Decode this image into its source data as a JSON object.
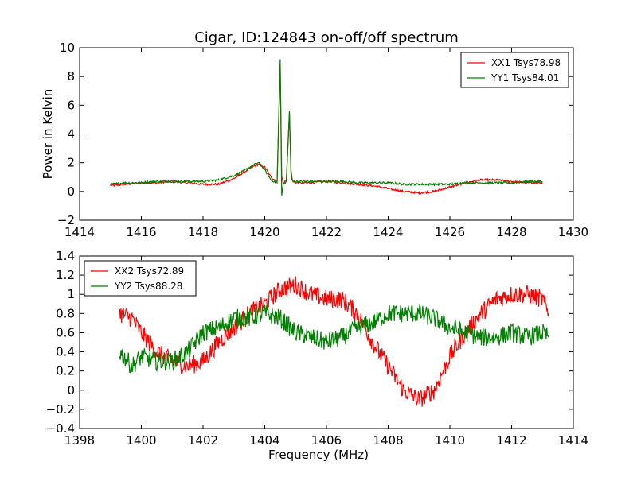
{
  "title": "Cigar, ID:124843 on-off/off spectrum",
  "chart_data": [
    {
      "type": "line",
      "ylabel": "Power in Kelvin",
      "xlabel": "",
      "xlim": [
        1414,
        1430
      ],
      "ylim": [
        -2,
        10
      ],
      "xticks": [
        1414,
        1416,
        1418,
        1420,
        1422,
        1424,
        1426,
        1428,
        1430
      ],
      "yticks": [
        -2,
        0,
        2,
        4,
        6,
        8,
        10
      ],
      "grid": false,
      "legend_position": "top-right",
      "series": [
        {
          "name": "XX1 Tsys78.98",
          "color": "#ff0000",
          "x": [
            1415.0,
            1415.5,
            1416.0,
            1416.5,
            1417.0,
            1417.5,
            1418.0,
            1418.5,
            1419.0,
            1419.3,
            1419.6,
            1419.8,
            1420.0,
            1420.2,
            1420.4,
            1420.5,
            1420.55,
            1420.6,
            1420.7,
            1420.8,
            1420.85,
            1420.9,
            1421.0,
            1421.5,
            1422.0,
            1422.5,
            1423.0,
            1423.5,
            1424.0,
            1424.5,
            1425.0,
            1425.5,
            1426.0,
            1426.5,
            1427.0,
            1427.5,
            1428.0,
            1428.5,
            1429.0
          ],
          "y": [
            0.4,
            0.5,
            0.6,
            0.6,
            0.7,
            0.6,
            0.5,
            0.5,
            0.9,
            1.3,
            1.7,
            1.9,
            1.7,
            1.0,
            0.7,
            8.9,
            1.0,
            0.6,
            0.8,
            5.4,
            1.2,
            0.7,
            0.6,
            0.6,
            0.7,
            0.6,
            0.5,
            0.4,
            0.2,
            0.0,
            -0.1,
            0.0,
            0.3,
            0.6,
            0.8,
            0.8,
            0.7,
            0.6,
            0.6
          ]
        },
        {
          "name": "YY1 Tsys84.01",
          "color": "#008000",
          "x": [
            1415.0,
            1415.5,
            1416.0,
            1416.5,
            1417.0,
            1417.5,
            1418.0,
            1418.5,
            1419.0,
            1419.3,
            1419.6,
            1419.8,
            1420.0,
            1420.2,
            1420.4,
            1420.5,
            1420.55,
            1420.6,
            1420.7,
            1420.8,
            1420.85,
            1420.9,
            1421.0,
            1421.5,
            1422.0,
            1422.5,
            1423.0,
            1423.5,
            1424.0,
            1424.5,
            1425.0,
            1425.5,
            1426.0,
            1426.5,
            1427.0,
            1427.5,
            1428.0,
            1428.5,
            1429.0
          ],
          "y": [
            0.5,
            0.6,
            0.6,
            0.7,
            0.7,
            0.7,
            0.7,
            0.8,
            1.1,
            1.4,
            1.8,
            2.0,
            1.5,
            0.8,
            0.6,
            9.2,
            -0.3,
            0.5,
            0.7,
            5.6,
            1.5,
            0.7,
            0.7,
            0.7,
            0.7,
            0.7,
            0.6,
            0.6,
            0.6,
            0.5,
            0.5,
            0.5,
            0.5,
            0.6,
            0.6,
            0.6,
            0.6,
            0.7,
            0.7
          ]
        }
      ]
    },
    {
      "type": "line",
      "xlabel": "Frequency (MHz)",
      "ylabel": "",
      "xlim": [
        1398,
        1414
      ],
      "ylim": [
        -0.4,
        1.4
      ],
      "xticks": [
        1398,
        1400,
        1402,
        1404,
        1406,
        1408,
        1410,
        1412,
        1414
      ],
      "yticks": [
        -0.4,
        -0.2,
        0.0,
        0.2,
        0.4,
        0.6,
        0.8,
        1.0,
        1.2,
        1.4
      ],
      "grid": false,
      "legend_position": "top-left",
      "series": [
        {
          "name": "XX2 Tsys72.89",
          "color": "#ff0000",
          "x": [
            1399.3,
            1399.7,
            1400.0,
            1400.5,
            1401.0,
            1401.5,
            1402.0,
            1402.5,
            1403.0,
            1403.5,
            1404.0,
            1404.5,
            1405.0,
            1405.5,
            1406.0,
            1406.5,
            1407.0,
            1407.5,
            1408.0,
            1408.5,
            1409.0,
            1409.5,
            1410.0,
            1410.5,
            1411.0,
            1411.5,
            1412.0,
            1412.5,
            1413.0,
            1413.2
          ],
          "y": [
            0.8,
            0.75,
            0.6,
            0.4,
            0.3,
            0.25,
            0.3,
            0.5,
            0.65,
            0.8,
            0.9,
            1.05,
            1.1,
            1.0,
            0.95,
            0.95,
            0.8,
            0.5,
            0.25,
            0.0,
            -0.1,
            0.0,
            0.35,
            0.6,
            0.8,
            0.95,
            1.0,
            1.0,
            0.95,
            0.8
          ]
        },
        {
          "name": "YY2 Tsys88.28",
          "color": "#008000",
          "x": [
            1399.3,
            1399.7,
            1400.0,
            1400.5,
            1401.0,
            1401.5,
            1402.0,
            1402.5,
            1403.0,
            1403.5,
            1404.0,
            1404.5,
            1405.0,
            1405.5,
            1406.0,
            1406.5,
            1407.0,
            1407.5,
            1408.0,
            1408.5,
            1409.0,
            1409.5,
            1410.0,
            1410.5,
            1411.0,
            1411.5,
            1412.0,
            1412.5,
            1413.0,
            1413.2
          ],
          "y": [
            0.4,
            0.25,
            0.35,
            0.3,
            0.3,
            0.4,
            0.6,
            0.65,
            0.75,
            0.75,
            0.8,
            0.75,
            0.6,
            0.55,
            0.5,
            0.55,
            0.65,
            0.7,
            0.8,
            0.8,
            0.8,
            0.75,
            0.65,
            0.6,
            0.55,
            0.55,
            0.6,
            0.55,
            0.6,
            0.55
          ]
        }
      ]
    }
  ]
}
